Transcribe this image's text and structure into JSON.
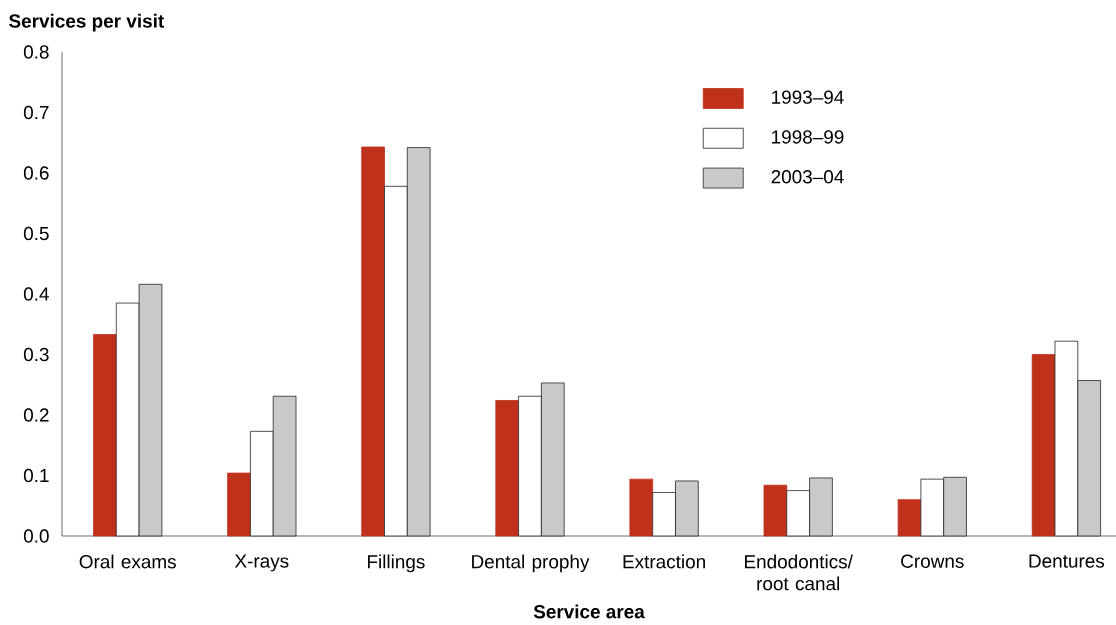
{
  "chart_data": {
    "type": "bar",
    "ylabel": "Services per visit",
    "xlabel": "Service area",
    "categories": [
      "Oral exams",
      "X-rays",
      "Fillings",
      "Dental prophy",
      "Extraction",
      "Endodontics/ root canal",
      "Crowns",
      "Dentures"
    ],
    "series": [
      {
        "name": "1993–94",
        "color": "#c0311c",
        "values": [
          0.333,
          0.104,
          0.643,
          0.224,
          0.094,
          0.084,
          0.06,
          0.3
        ]
      },
      {
        "name": "1998–99",
        "color": "#ffffff",
        "values": [
          0.385,
          0.173,
          0.578,
          0.231,
          0.072,
          0.075,
          0.094,
          0.322
        ]
      },
      {
        "name": "2003–04",
        "color": "#c8c9cb",
        "values": [
          0.416,
          0.231,
          0.642,
          0.253,
          0.091,
          0.096,
          0.097,
          0.257
        ]
      }
    ],
    "ylim": [
      0,
      0.8
    ],
    "yticks": [
      {
        "value": 0,
        "label": "0.0"
      },
      0.1,
      0.2,
      0.3,
      0.4,
      0.5,
      0.6,
      0.7,
      0.8
    ],
    "legend": "top right",
    "grid": false
  }
}
